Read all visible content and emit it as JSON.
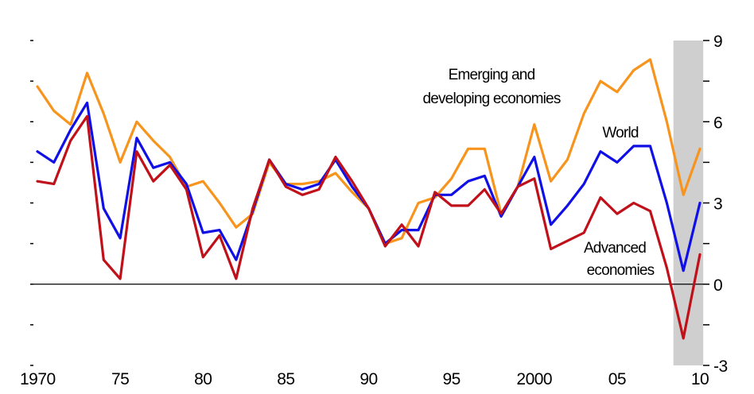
{
  "chart_data": {
    "type": "line",
    "x_tick_labels": [
      "1970",
      "75",
      "80",
      "85",
      "90",
      "95",
      "2000",
      "05",
      "10"
    ],
    "x_tick_years": [
      1970,
      1975,
      1980,
      1985,
      1990,
      1995,
      2000,
      2005,
      2010
    ],
    "y_tick_labels": [
      "9",
      "6",
      "3",
      "0",
      "-3"
    ],
    "y_tick_values": [
      9,
      6,
      3,
      0,
      -3
    ],
    "xlim": [
      1970,
      2010
    ],
    "ylim": [
      -3,
      9
    ],
    "shaded_region": [
      2008.4,
      2010.2
    ],
    "zero_line": true,
    "annotations": [
      {
        "id": "emerging",
        "lines": [
          "Emerging and",
          "developing economies"
        ]
      },
      {
        "id": "world",
        "lines": [
          "World"
        ]
      },
      {
        "id": "advanced",
        "lines": [
          "Advanced",
          "economies"
        ]
      }
    ],
    "x": [
      1970,
      1971,
      1972,
      1973,
      1974,
      1975,
      1976,
      1977,
      1978,
      1979,
      1980,
      1981,
      1982,
      1983,
      1984,
      1985,
      1986,
      1987,
      1988,
      1989,
      1990,
      1991,
      1992,
      1993,
      1994,
      1995,
      1996,
      1997,
      1998,
      1999,
      2000,
      2001,
      2002,
      2003,
      2004,
      2005,
      2006,
      2007,
      2008,
      2009,
      2010
    ],
    "series": [
      {
        "key": "emerging",
        "color": "#F7941D",
        "values": [
          7.3,
          6.4,
          5.9,
          7.8,
          6.3,
          4.5,
          6.0,
          5.3,
          4.7,
          3.6,
          3.8,
          3.0,
          2.1,
          2.6,
          4.5,
          3.7,
          3.7,
          3.8,
          4.1,
          3.4,
          2.8,
          1.5,
          1.7,
          3.0,
          3.2,
          3.9,
          5.0,
          5.0,
          2.6,
          3.6,
          5.9,
          3.8,
          4.6,
          6.3,
          7.5,
          7.1,
          7.9,
          8.3,
          6.0,
          3.3,
          5.0
        ]
      },
      {
        "key": "world",
        "color": "#1010E6",
        "values": [
          4.9,
          4.5,
          5.7,
          6.7,
          2.8,
          1.7,
          5.4,
          4.3,
          4.5,
          3.7,
          1.9,
          2.0,
          0.9,
          2.7,
          4.6,
          3.7,
          3.5,
          3.7,
          4.6,
          3.6,
          2.8,
          1.5,
          2.0,
          2.0,
          3.3,
          3.3,
          3.8,
          4.0,
          2.5,
          3.6,
          4.7,
          2.2,
          2.9,
          3.7,
          4.9,
          4.5,
          5.1,
          5.1,
          3.0,
          0.5,
          3.0
        ]
      },
      {
        "key": "advanced",
        "color": "#C0101A",
        "values": [
          3.8,
          3.7,
          5.3,
          6.2,
          0.9,
          0.2,
          4.9,
          3.8,
          4.4,
          3.5,
          1.0,
          1.8,
          0.2,
          2.8,
          4.6,
          3.6,
          3.3,
          3.5,
          4.7,
          3.8,
          2.8,
          1.4,
          2.2,
          1.4,
          3.4,
          2.9,
          2.9,
          3.5,
          2.6,
          3.6,
          3.9,
          1.3,
          1.6,
          1.9,
          3.2,
          2.6,
          3.0,
          2.7,
          0.6,
          -2.0,
          1.1
        ]
      }
    ]
  }
}
